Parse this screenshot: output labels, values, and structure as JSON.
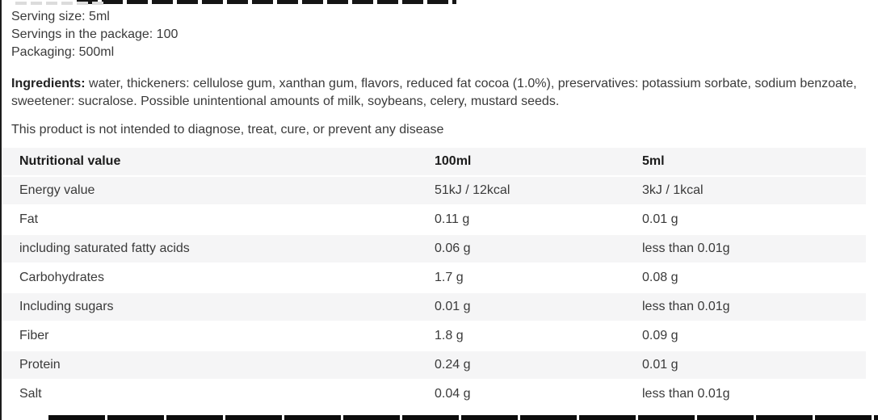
{
  "product_info": {
    "serving_size": "Serving size: 5ml",
    "servings_in_package": "Servings in the package: 100",
    "packaging": "Packaging: 500ml"
  },
  "ingredients": {
    "label": "Ingredients:",
    "text": " water, thickeners: cellulose gum, xanthan gum, flavors, reduced fat cocoa (1.0%), preservatives: potassium sorbate, sodium benzoate, sweetener: sucralose. Possible unintentional amounts of milk, soybeans, celery, mustard seeds."
  },
  "disclaimer": "This product is not intended to diagnose, treat, cure, or prevent any disease",
  "nutrition_table": {
    "headers": [
      "Nutritional value",
      "100ml",
      "5ml"
    ],
    "rows": [
      [
        "Energy value",
        "51kJ / 12kcal",
        "3kJ / 1kcal"
      ],
      [
        "Fat",
        "0.11 g",
        "0.01 g"
      ],
      [
        "including saturated fatty acids",
        "0.06 g",
        "less than 0.01g"
      ],
      [
        "Carbohydrates",
        "1.7 g",
        "0.08 g"
      ],
      [
        "Including sugars",
        "0.01 g",
        "less than 0.01g"
      ],
      [
        "Fiber",
        "1.8 g",
        "0.09 g"
      ],
      [
        "Protein",
        "0.24 g",
        "0.01 g"
      ],
      [
        "Salt",
        "0.04 g",
        "less than 0.01g"
      ]
    ]
  },
  "colors": {
    "row_stripe": "#f5f5f6",
    "text": "#3a3a3a",
    "heading_text": "#1c1c1c",
    "left_border": "#1b1b1b",
    "cutoff_bar": "#0c0c0c"
  }
}
